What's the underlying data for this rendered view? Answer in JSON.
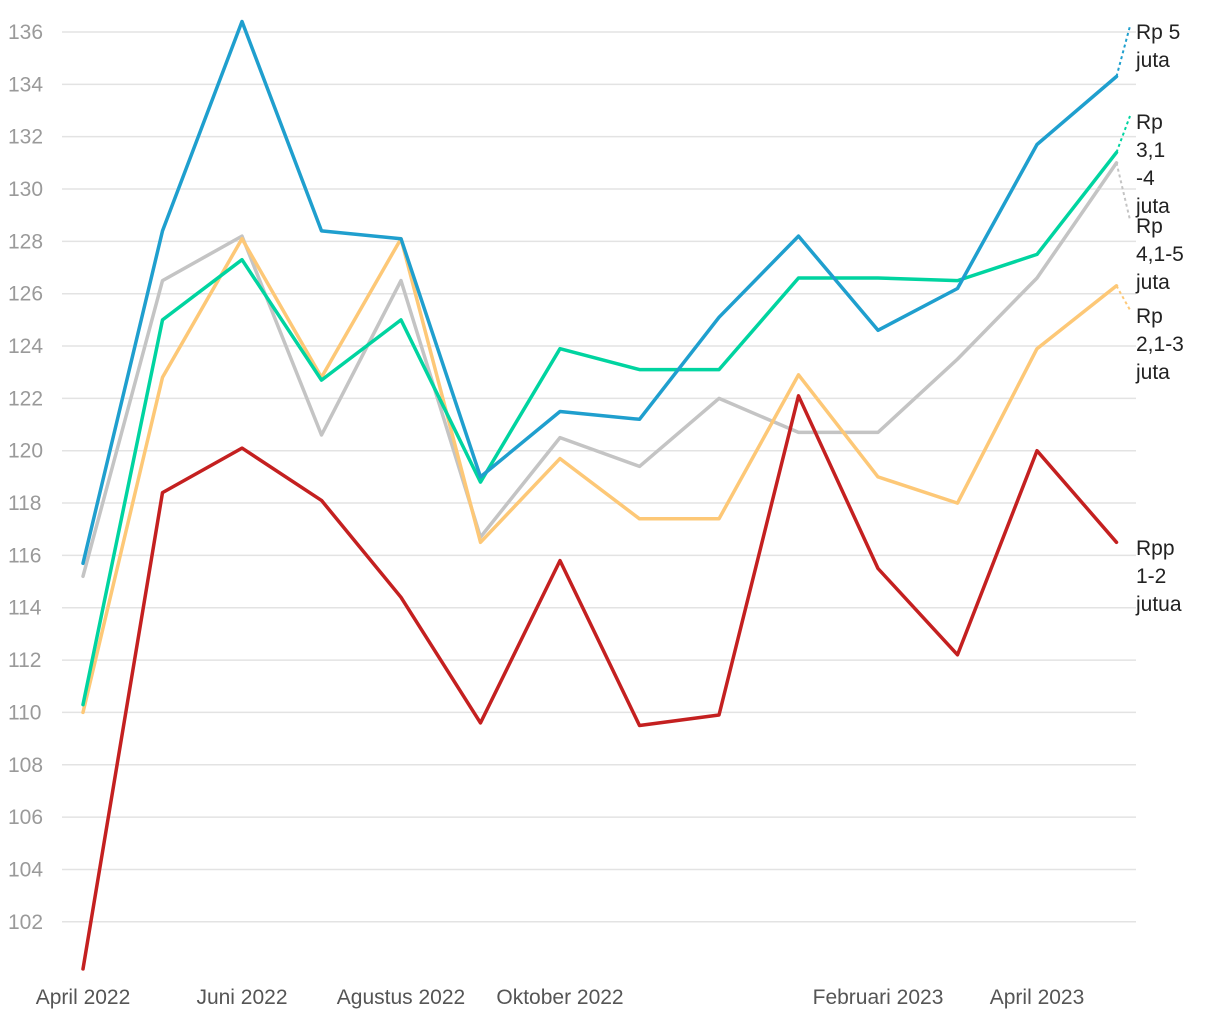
{
  "chart_data": {
    "type": "line",
    "x": [
      "April 2022",
      "Mei 2022",
      "Juni 2022",
      "Juli 2022",
      "Agustus 2022",
      "September 2022",
      "Oktober 2022",
      "November 2022",
      "Desember 2022",
      "Januari 2023",
      "Februari 2023",
      "Maret 2023",
      "April 2023",
      "Mei 2023"
    ],
    "x_tick_labels": [
      "April 2022",
      "Juni 2022",
      "Agustus 2022",
      "Oktober 2022",
      "Februari 2023",
      "April 2023"
    ],
    "x_tick_indices": [
      0,
      2,
      4,
      6,
      10,
      12
    ],
    "y_ticks": [
      102,
      104,
      106,
      108,
      110,
      112,
      114,
      116,
      118,
      120,
      122,
      124,
      126,
      128,
      130,
      132,
      134,
      136
    ],
    "ylim": [
      100,
      136.5
    ],
    "grid": true,
    "legend": "end-labels-right",
    "series": [
      {
        "name": "Rp 5 juta",
        "color": "#1f9fce",
        "label_lines": [
          "Rp 5",
          "juta"
        ],
        "values": [
          115.7,
          128.4,
          136.4,
          128.4,
          128.1,
          119.0,
          121.5,
          121.2,
          125.1,
          128.2,
          124.6,
          126.2,
          131.7,
          134.3
        ]
      },
      {
        "name": "Rp 3,1 -4 juta",
        "color": "#00d4a0",
        "label_lines": [
          "Rp",
          "3,1",
          "-4",
          "juta"
        ],
        "values": [
          110.3,
          125.0,
          127.3,
          122.7,
          125.0,
          118.8,
          123.9,
          123.1,
          123.1,
          126.6,
          126.6,
          126.5,
          127.5,
          131.4
        ]
      },
      {
        "name": "Rp 4,1-5 juta",
        "color": "#c4c4c4",
        "label_lines": [
          "Rp",
          "4,1-5",
          "juta"
        ],
        "values": [
          115.2,
          126.5,
          128.2,
          120.6,
          126.5,
          116.7,
          120.5,
          119.4,
          122.0,
          120.7,
          120.7,
          123.5,
          126.6,
          131.0
        ]
      },
      {
        "name": "Rp 2,1-3 juta",
        "color": "#fdc877",
        "label_lines": [
          "Rp",
          "2,1-3",
          "juta"
        ],
        "values": [
          110.0,
          122.8,
          128.1,
          122.8,
          128.1,
          116.5,
          119.7,
          117.4,
          117.4,
          122.9,
          119.0,
          118.0,
          123.9,
          126.3
        ]
      },
      {
        "name": "Rpp 1-2 jutua",
        "color": "#c42020",
        "label_lines": [
          "Rpp",
          "1-2",
          "jutua"
        ],
        "values": [
          100.2,
          118.4,
          120.1,
          118.1,
          114.4,
          109.6,
          115.8,
          109.5,
          109.9,
          122.1,
          115.5,
          112.2,
          120.0,
          116.5
        ]
      }
    ]
  }
}
